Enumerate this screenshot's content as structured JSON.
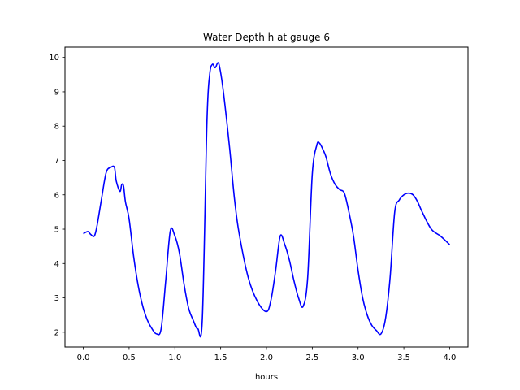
{
  "chart_data": {
    "type": "line",
    "title": "Water Depth h at gauge 6",
    "xlabel": "hours",
    "ylabel": "",
    "xlim": [
      -0.2,
      4.2
    ],
    "ylim": [
      1.57,
      10.3
    ],
    "xticks": [
      "0.0",
      "0.5",
      "1.0",
      "1.5",
      "2.0",
      "2.5",
      "3.0",
      "3.5",
      "4.0"
    ],
    "yticks": [
      "2",
      "3",
      "4",
      "5",
      "6",
      "7",
      "8",
      "9",
      "10"
    ],
    "grid": false,
    "line_color": "#0000ff",
    "series": [
      {
        "x": [
          0.0,
          0.05,
          0.08,
          0.12,
          0.15,
          0.2,
          0.25,
          0.3,
          0.34,
          0.36,
          0.4,
          0.42,
          0.44,
          0.46,
          0.5,
          0.55,
          0.6,
          0.65,
          0.7,
          0.75,
          0.8,
          0.85,
          0.9,
          0.95,
          1.0,
          1.05,
          1.1,
          1.15,
          1.2,
          1.25,
          1.3,
          1.35,
          1.38,
          1.41,
          1.44,
          1.47,
          1.49,
          1.52,
          1.56,
          1.6,
          1.65,
          1.7,
          1.8,
          1.9,
          2.0,
          2.05,
          2.1,
          2.15,
          2.2,
          2.25,
          2.3,
          2.35,
          2.4,
          2.45,
          2.5,
          2.55,
          2.58,
          2.62,
          2.65,
          2.7,
          2.75,
          2.8,
          2.85,
          2.9,
          2.95,
          3.0,
          3.05,
          3.1,
          3.15,
          3.2,
          3.25,
          3.3,
          3.35,
          3.4,
          3.45,
          3.5,
          3.55,
          3.6,
          3.65,
          3.7,
          3.8,
          3.9,
          4.0
        ],
        "y": [
          4.87,
          4.93,
          4.85,
          4.8,
          5.1,
          5.9,
          6.65,
          6.8,
          6.8,
          6.4,
          6.1,
          6.3,
          6.25,
          5.8,
          5.3,
          4.2,
          3.35,
          2.75,
          2.35,
          2.1,
          1.95,
          2.1,
          3.5,
          4.95,
          4.8,
          4.3,
          3.4,
          2.7,
          2.35,
          2.1,
          2.4,
          8.1,
          9.5,
          9.8,
          9.7,
          9.85,
          9.7,
          9.2,
          8.3,
          7.3,
          5.9,
          4.9,
          3.6,
          2.9,
          2.6,
          2.95,
          3.8,
          4.8,
          4.55,
          4.1,
          3.5,
          3.0,
          2.75,
          3.6,
          6.6,
          7.45,
          7.5,
          7.3,
          7.1,
          6.6,
          6.3,
          6.15,
          6.05,
          5.5,
          4.8,
          3.8,
          3.0,
          2.5,
          2.2,
          2.05,
          1.95,
          2.4,
          3.6,
          5.5,
          5.85,
          6.0,
          6.05,
          6.0,
          5.8,
          5.5,
          5.0,
          4.8,
          4.55
        ]
      }
    ]
  }
}
